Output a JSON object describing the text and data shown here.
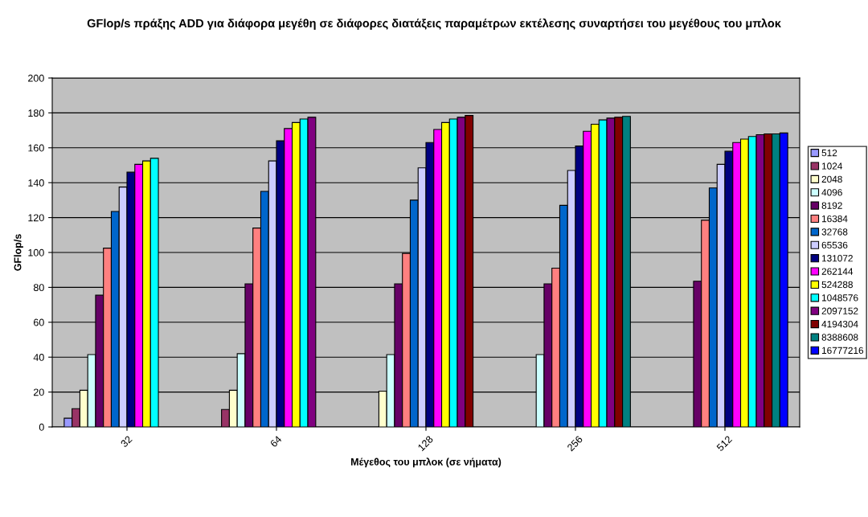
{
  "chart_data": {
    "type": "bar",
    "title": "GFlop/s πράξης ADD για διάφορα μεγέθη σε διάφορες διατάξεις παραμέτρων εκτέλεσης συναρτήσει του μεγέθους του μπλοκ",
    "xlabel": "Μέγεθος του μπλοκ (σε νήματα)",
    "ylabel": "GFlop/s",
    "categories": [
      "32",
      "64",
      "128",
      "256",
      "512"
    ],
    "ylim": [
      0,
      200
    ],
    "yticks": [
      0,
      20,
      40,
      60,
      80,
      100,
      120,
      140,
      160,
      180,
      200
    ],
    "grid": "y",
    "legend": "right",
    "series": [
      {
        "name": "512",
        "color": "#9999ff",
        "values": [
          5,
          null,
          null,
          null,
          null
        ]
      },
      {
        "name": "1024",
        "color": "#993366",
        "values": [
          10.5,
          10,
          null,
          null,
          null
        ]
      },
      {
        "name": "2048",
        "color": "#ffffcc",
        "values": [
          21,
          21,
          20.5,
          null,
          null
        ]
      },
      {
        "name": "4096",
        "color": "#ccffff",
        "values": [
          41.5,
          42,
          41.5,
          41.5,
          null
        ]
      },
      {
        "name": "8192",
        "color": "#660066",
        "values": [
          75.5,
          82,
          82,
          82,
          83.5
        ]
      },
      {
        "name": "16384",
        "color": "#ff8080",
        "values": [
          102.5,
          114,
          99.5,
          91,
          118.5
        ]
      },
      {
        "name": "32768",
        "color": "#0066cc",
        "values": [
          123.5,
          135,
          130,
          127,
          137
        ]
      },
      {
        "name": "65536",
        "color": "#ccccff",
        "values": [
          137.5,
          152.5,
          148.5,
          147,
          150.5
        ]
      },
      {
        "name": "131072",
        "color": "#000080",
        "values": [
          146,
          164,
          163,
          161,
          158
        ]
      },
      {
        "name": "262144",
        "color": "#ff00ff",
        "values": [
          150.5,
          171,
          170.5,
          169.5,
          163
        ]
      },
      {
        "name": "524288",
        "color": "#ffff00",
        "values": [
          152.5,
          174.5,
          174.5,
          173.5,
          165
        ]
      },
      {
        "name": "1048576",
        "color": "#00ffff",
        "values": [
          154,
          176.5,
          176.5,
          176,
          166.5
        ]
      },
      {
        "name": "2097152",
        "color": "#800080",
        "values": [
          null,
          177.5,
          177.5,
          177,
          167.5
        ]
      },
      {
        "name": "4194304",
        "color": "#800000",
        "values": [
          null,
          null,
          178.5,
          177.5,
          168
        ]
      },
      {
        "name": "8388608",
        "color": "#008080",
        "values": [
          null,
          null,
          null,
          178,
          168
        ]
      },
      {
        "name": "16777216",
        "color": "#0000ff",
        "values": [
          null,
          null,
          null,
          null,
          168.5
        ]
      }
    ]
  }
}
